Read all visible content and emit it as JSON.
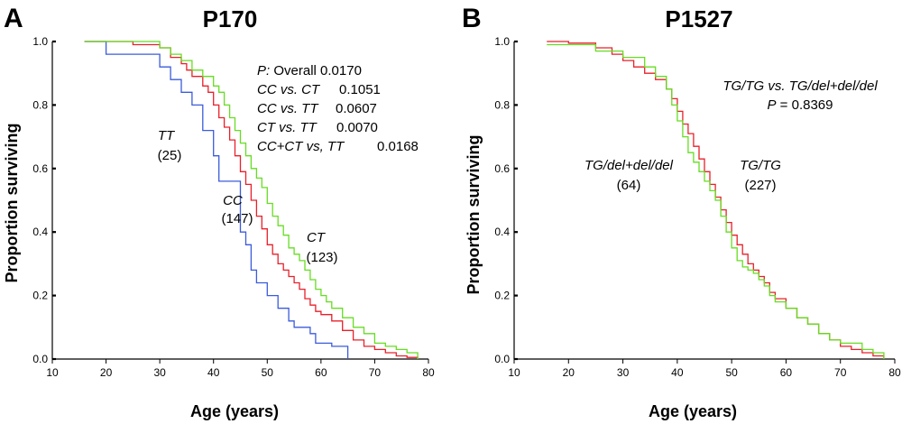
{
  "colors": {
    "blue": "#3b5bdb",
    "red": "#e8202a",
    "green": "#66dd22"
  },
  "chart_data": [
    {
      "type": "line",
      "panel_letter": "A",
      "title": "P170",
      "xlabel": "Age (years)",
      "ylabel": "Proportion surviving",
      "xlim": [
        10,
        80
      ],
      "ylim": [
        0,
        1
      ],
      "xticks": [
        "10",
        "20",
        "30",
        "40",
        "50",
        "60",
        "70",
        "80"
      ],
      "yticks": [
        "0.0",
        "0.2",
        "0.4",
        "0.6",
        "0.8",
        "1.0"
      ],
      "series": [
        {
          "name": "TT (25)",
          "color": "blue",
          "x": [
            16,
            20,
            30,
            32,
            34,
            36,
            38,
            40,
            41,
            45,
            46,
            47,
            48,
            50,
            52,
            54,
            55,
            58,
            59,
            62,
            65
          ],
          "y": [
            1.0,
            0.96,
            0.92,
            0.88,
            0.84,
            0.8,
            0.72,
            0.64,
            0.56,
            0.4,
            0.36,
            0.28,
            0.24,
            0.2,
            0.16,
            0.12,
            0.1,
            0.08,
            0.05,
            0.04,
            0.0
          ]
        },
        {
          "name": "CC (147)",
          "color": "red",
          "x": [
            16,
            25,
            30,
            32,
            34,
            35,
            36,
            38,
            39,
            40,
            41,
            42,
            43,
            44,
            45,
            46,
            47,
            48,
            49,
            50,
            51,
            52,
            53,
            54,
            55,
            56,
            57,
            58,
            59,
            60,
            62,
            64,
            66,
            68,
            70,
            72,
            74,
            76,
            78
          ],
          "y": [
            1.0,
            0.99,
            0.98,
            0.95,
            0.93,
            0.91,
            0.89,
            0.86,
            0.84,
            0.8,
            0.76,
            0.73,
            0.69,
            0.64,
            0.59,
            0.55,
            0.5,
            0.45,
            0.41,
            0.36,
            0.33,
            0.3,
            0.28,
            0.26,
            0.24,
            0.22,
            0.19,
            0.17,
            0.15,
            0.14,
            0.12,
            0.09,
            0.06,
            0.04,
            0.03,
            0.02,
            0.01,
            0.005,
            0.0
          ]
        },
        {
          "name": "CT (123)",
          "color": "green",
          "x": [
            16,
            30,
            32,
            34,
            36,
            38,
            40,
            41,
            42,
            43,
            44,
            45,
            46,
            47,
            48,
            49,
            50,
            51,
            52,
            53,
            54,
            55,
            56,
            57,
            58,
            59,
            60,
            61,
            62,
            64,
            66,
            68,
            70,
            72,
            74,
            76,
            78
          ],
          "y": [
            1.0,
            0.98,
            0.96,
            0.94,
            0.91,
            0.89,
            0.86,
            0.84,
            0.8,
            0.76,
            0.72,
            0.68,
            0.64,
            0.6,
            0.57,
            0.54,
            0.49,
            0.45,
            0.42,
            0.39,
            0.35,
            0.33,
            0.31,
            0.28,
            0.25,
            0.22,
            0.2,
            0.18,
            0.16,
            0.13,
            0.1,
            0.08,
            0.05,
            0.04,
            0.03,
            0.02,
            0.0
          ]
        }
      ],
      "series_labels": [
        {
          "name": "TT",
          "count": "(25)"
        },
        {
          "name": "CC",
          "count": "(147)"
        },
        {
          "name": "CT",
          "count": "(123)"
        }
      ],
      "stats": {
        "overall_prefix": "P:",
        "overall_text": " Overall  0.0170",
        "lines": [
          {
            "label": "CC vs. CT",
            "value": "0.1051"
          },
          {
            "label": "CC vs. TT",
            "value": "0.0607"
          },
          {
            "label": "CT vs. TT",
            "value": "0.0070"
          },
          {
            "label": "CC+CT  vs, TT",
            "value": "0.0168"
          }
        ]
      }
    },
    {
      "type": "line",
      "panel_letter": "B",
      "title": "P1527",
      "xlabel": "Age (years)",
      "ylabel": "Proportion surviving",
      "xlim": [
        10,
        80
      ],
      "ylim": [
        0,
        1
      ],
      "xticks": [
        "10",
        "20",
        "30",
        "40",
        "50",
        "60",
        "70",
        "80"
      ],
      "yticks": [
        "0.0",
        "0.2",
        "0.4",
        "0.6",
        "0.8",
        "1.0"
      ],
      "series": [
        {
          "name": "TG/TG (227)",
          "color": "red",
          "x": [
            16,
            20,
            25,
            28,
            30,
            32,
            34,
            36,
            38,
            39,
            40,
            41,
            42,
            43,
            44,
            45,
            46,
            47,
            48,
            49,
            50,
            51,
            52,
            53,
            54,
            55,
            56,
            57,
            58,
            60,
            62,
            64,
            66,
            68,
            70,
            72,
            74,
            76,
            78
          ],
          "y": [
            1.0,
            0.995,
            0.98,
            0.96,
            0.94,
            0.92,
            0.9,
            0.88,
            0.85,
            0.82,
            0.78,
            0.74,
            0.71,
            0.67,
            0.63,
            0.59,
            0.55,
            0.51,
            0.47,
            0.43,
            0.39,
            0.36,
            0.33,
            0.3,
            0.28,
            0.26,
            0.24,
            0.21,
            0.19,
            0.16,
            0.13,
            0.11,
            0.08,
            0.06,
            0.04,
            0.03,
            0.02,
            0.01,
            0.0
          ]
        },
        {
          "name": "TG/del+del/del (64)",
          "color": "green",
          "x": [
            16,
            25,
            30,
            34,
            36,
            38,
            39,
            40,
            41,
            42,
            43,
            44,
            45,
            46,
            47,
            48,
            49,
            50,
            51,
            52,
            53,
            54,
            55,
            56,
            57,
            58,
            60,
            62,
            64,
            66,
            68,
            70,
            72,
            74,
            76,
            78
          ],
          "y": [
            0.99,
            0.97,
            0.95,
            0.92,
            0.89,
            0.85,
            0.8,
            0.75,
            0.7,
            0.65,
            0.62,
            0.59,
            0.56,
            0.53,
            0.5,
            0.45,
            0.4,
            0.35,
            0.31,
            0.29,
            0.28,
            0.27,
            0.25,
            0.23,
            0.2,
            0.18,
            0.16,
            0.13,
            0.11,
            0.08,
            0.06,
            0.05,
            0.05,
            0.03,
            0.02,
            0.0
          ]
        }
      ],
      "series_labels": [
        {
          "name": "TG/TG",
          "count": "(227)"
        },
        {
          "name": "TG/del+del/del",
          "count": "(64)"
        }
      ],
      "stats": {
        "comparison": "TG/TG vs. TG/del+del/del",
        "p_prefix": "P",
        "p_value": " = 0.8369"
      }
    }
  ]
}
